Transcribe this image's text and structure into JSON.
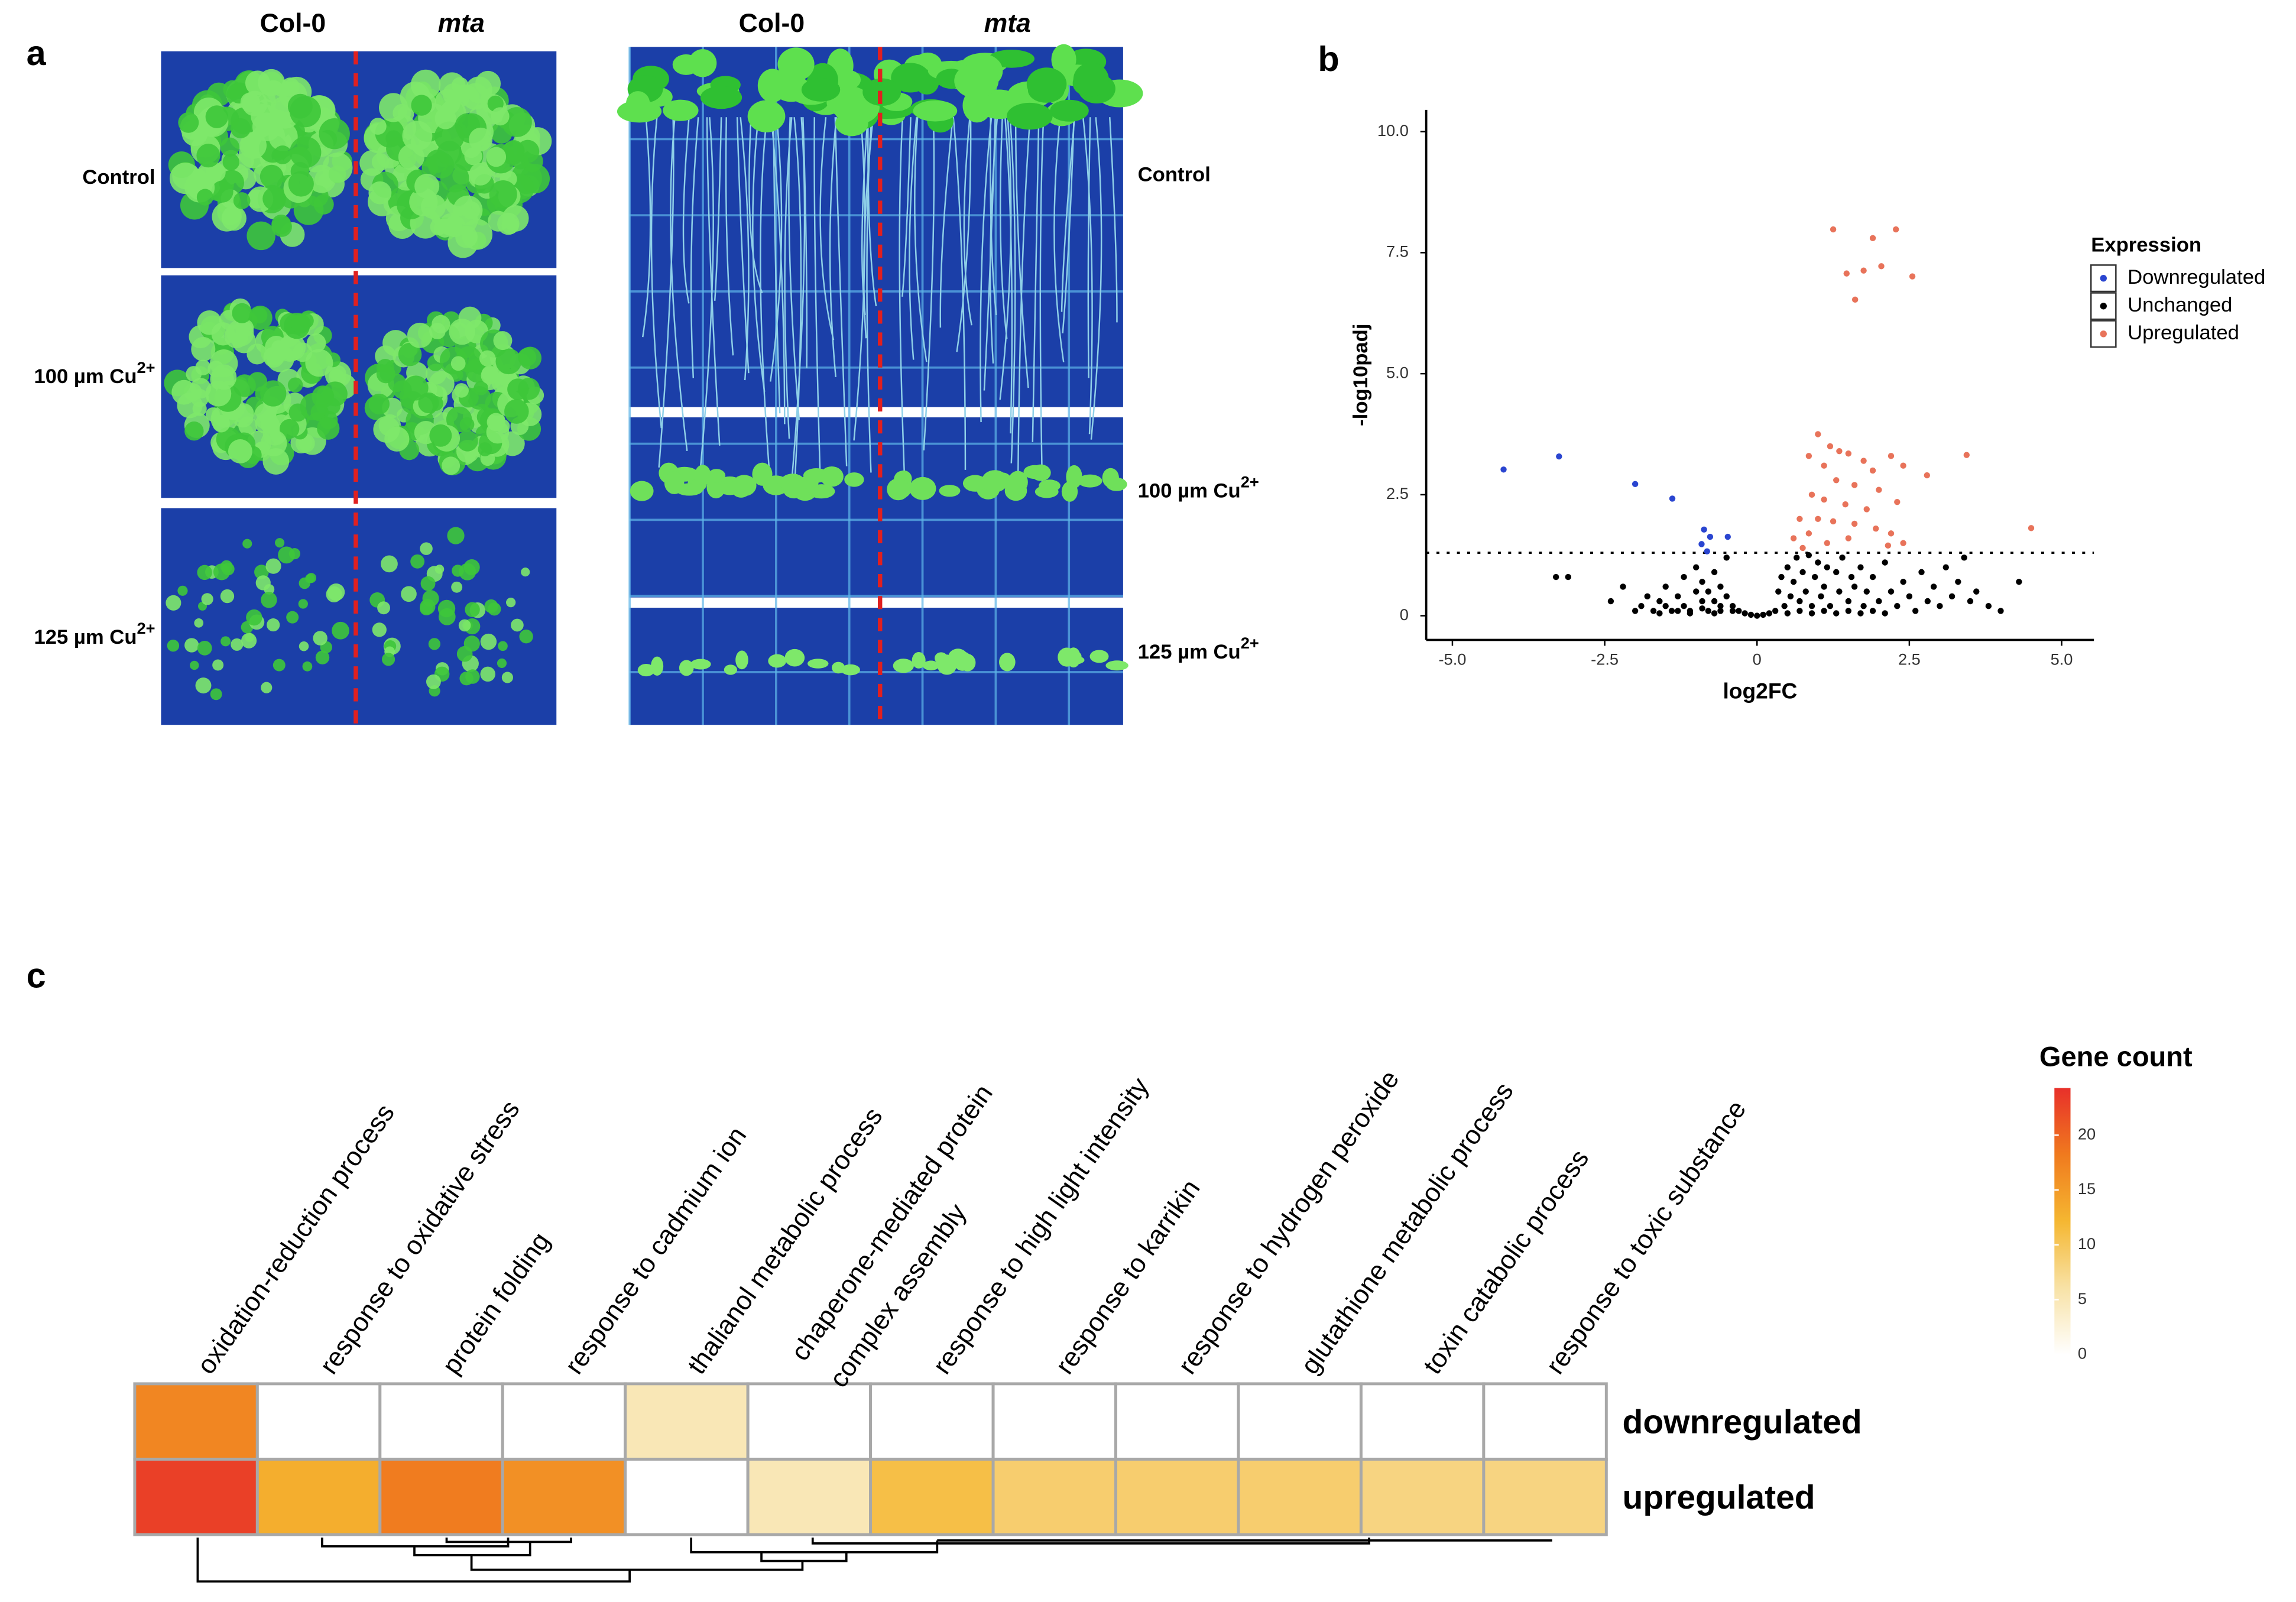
{
  "panel_labels": [
    "a",
    "b",
    "c"
  ],
  "panel_a": {
    "left": {
      "columns": [
        "Col-0",
        "mta"
      ],
      "rows": [
        {
          "text": "Control"
        },
        {
          "text": "100 µm Cu",
          "sup": "2+"
        },
        {
          "text": "125 µm Cu",
          "sup": "2+"
        }
      ]
    },
    "right": {
      "columns": [
        "Col-0",
        "mta"
      ],
      "rows": [
        {
          "text": "Control"
        },
        {
          "text": "100 µm Cu",
          "sup": "2+"
        },
        {
          "text": "125 µm Cu",
          "sup": "2+"
        }
      ]
    }
  },
  "chart_data": [
    {
      "type": "scatter",
      "x_label": "log2FC",
      "y_label": "-log10padj",
      "xlim": [
        -5.43,
        5.53
      ],
      "ylim": [
        -0.5,
        10.45
      ],
      "xticks": [
        {
          "value": -5,
          "label": "-5.0"
        },
        -2.5,
        0,
        2.5,
        {
          "value": 5,
          "label": "5.0"
        }
      ],
      "yticks": [
        0,
        2.5,
        {
          "value": 5,
          "label": "5.0"
        },
        7.5,
        {
          "value": 10,
          "label": "10.0"
        }
      ],
      "threshold": 1.3,
      "legend": {
        "title": "Expression",
        "position": "right"
      },
      "series": [
        {
          "name": "Downregulated",
          "color": "#2a45d0",
          "x": [
            -4.16,
            -3.25,
            -2.0,
            -1.39,
            -0.87,
            -0.77,
            -0.91,
            -0.48,
            -0.82
          ],
          "values": [
            3.02,
            3.29,
            2.72,
            2.42,
            1.78,
            1.63,
            1.48,
            1.63,
            1.33
          ]
        },
        {
          "name": "Unchanged",
          "color": "#000000",
          "x": [
            -3.3,
            -3.1,
            -2.4,
            -2.2,
            -2.0,
            -1.9,
            -1.8,
            -1.7,
            -1.6,
            -1.5,
            -1.5,
            -1.4,
            -1.3,
            -1.2,
            -1.2,
            -1.1,
            -1.0,
            -1.0,
            -0.9,
            -0.9,
            -0.8,
            -0.8,
            -0.7,
            -0.7,
            -0.6,
            -0.6,
            -0.5,
            -0.5,
            -0.4,
            -0.3,
            -0.2,
            -0.1,
            0.0,
            0.1,
            0.2,
            0.3,
            0.35,
            0.4,
            0.45,
            0.5,
            0.55,
            0.6,
            0.65,
            0.7,
            0.75,
            0.8,
            0.85,
            0.9,
            0.95,
            1.0,
            1.05,
            1.1,
            1.15,
            1.2,
            1.3,
            1.35,
            1.4,
            1.5,
            1.55,
            1.6,
            1.7,
            1.75,
            1.8,
            1.9,
            2.0,
            2.1,
            2.2,
            2.3,
            2.4,
            2.5,
            2.6,
            2.7,
            2.8,
            2.9,
            3.0,
            3.1,
            3.2,
            3.3,
            3.5,
            3.6,
            3.8,
            4.0,
            4.3,
            3.4,
            -1.6,
            -1.3,
            -1.1,
            -0.9,
            -0.7,
            -0.6,
            -0.4,
            0.5,
            0.7,
            0.9,
            1.1,
            1.3,
            1.5,
            1.7,
            1.9,
            2.1
          ],
          "values": [
            0.8,
            0.8,
            0.3,
            0.6,
            0.1,
            0.2,
            0.4,
            0.1,
            0.3,
            0.2,
            0.6,
            0.1,
            0.4,
            0.2,
            0.8,
            0.1,
            0.5,
            1.0,
            0.3,
            0.7,
            0.1,
            0.5,
            0.9,
            0.3,
            0.6,
            0.1,
            0.4,
            1.2,
            0.2,
            0.1,
            0.05,
            0.02,
            0.0,
            0.02,
            0.05,
            0.1,
            0.5,
            0.8,
            0.2,
            1.0,
            0.4,
            0.7,
            1.2,
            0.3,
            0.9,
            0.5,
            1.25,
            0.2,
            0.8,
            1.1,
            0.4,
            0.6,
            1.0,
            0.2,
            0.9,
            0.5,
            1.2,
            0.3,
            0.8,
            0.6,
            1.0,
            0.2,
            0.5,
            0.8,
            0.3,
            1.1,
            0.5,
            0.2,
            0.7,
            0.4,
            0.1,
            0.9,
            0.3,
            0.6,
            0.2,
            1.0,
            0.4,
            0.7,
            0.3,
            0.5,
            0.2,
            0.1,
            0.7,
            1.2,
            0.05,
            0.1,
            0.05,
            0.15,
            0.05,
            0.2,
            0.1,
            0.05,
            0.1,
            0.05,
            0.1,
            0.05,
            0.1,
            0.05,
            0.1,
            0.05
          ]
        },
        {
          "name": "Upregulated",
          "color": "#e8735a",
          "x": [
            1.25,
            1.9,
            2.28,
            1.47,
            1.75,
            2.04,
            2.55,
            1.61,
            1.0,
            1.2,
            1.35,
            1.5,
            1.75,
            1.9,
            0.85,
            1.1,
            2.2,
            2.4,
            1.3,
            1.6,
            2.0,
            0.9,
            1.1,
            1.45,
            1.8,
            2.3,
            0.7,
            1.0,
            1.25,
            1.6,
            1.95,
            2.2,
            0.6,
            0.85,
            1.15,
            1.5,
            2.4,
            0.75,
            3.44,
            2.79,
            4.5,
            2.15
          ],
          "values": [
            7.98,
            7.8,
            7.98,
            7.07,
            7.13,
            7.22,
            7.01,
            6.53,
            3.75,
            3.5,
            3.4,
            3.35,
            3.2,
            3.0,
            3.3,
            3.1,
            3.3,
            3.1,
            2.8,
            2.7,
            2.6,
            2.5,
            2.4,
            2.3,
            2.2,
            2.35,
            2.0,
            2.0,
            1.95,
            1.9,
            1.8,
            1.7,
            1.6,
            1.7,
            1.5,
            1.6,
            1.5,
            1.4,
            3.32,
            2.9,
            1.81,
            1.45
          ]
        }
      ]
    },
    {
      "type": "heatmap",
      "categories": [
        "oxidation-reduction process",
        "response to oxidative stress",
        "protein folding",
        "response to cadmium ion",
        "thalianol metabolic process",
        [
          "chaperone-mediated protein",
          "complex assembly"
        ],
        "response to high light intensity",
        "response to karrikin",
        "response to hydrogen peroxide",
        "glutathione metabolic process",
        "toxin catabolic process",
        "response to toxic substance"
      ],
      "rows": [
        "downregulated",
        "upregulated"
      ],
      "values": [
        [
          17,
          0,
          0,
          0,
          5,
          0,
          0,
          0,
          0,
          0,
          0,
          0
        ],
        [
          23,
          13,
          18,
          16,
          0,
          5,
          11,
          9,
          9,
          9,
          8,
          8
        ]
      ],
      "colorbar": {
        "title": "Gene count",
        "lim": [
          0,
          24.3
        ],
        "ticks": [
          0,
          5,
          10,
          15,
          20
        ],
        "colorscale": [
          "#ffffff",
          "#f8e2a6",
          "#f5b731",
          "#f07a1e",
          "#e8302a"
        ]
      }
    }
  ]
}
